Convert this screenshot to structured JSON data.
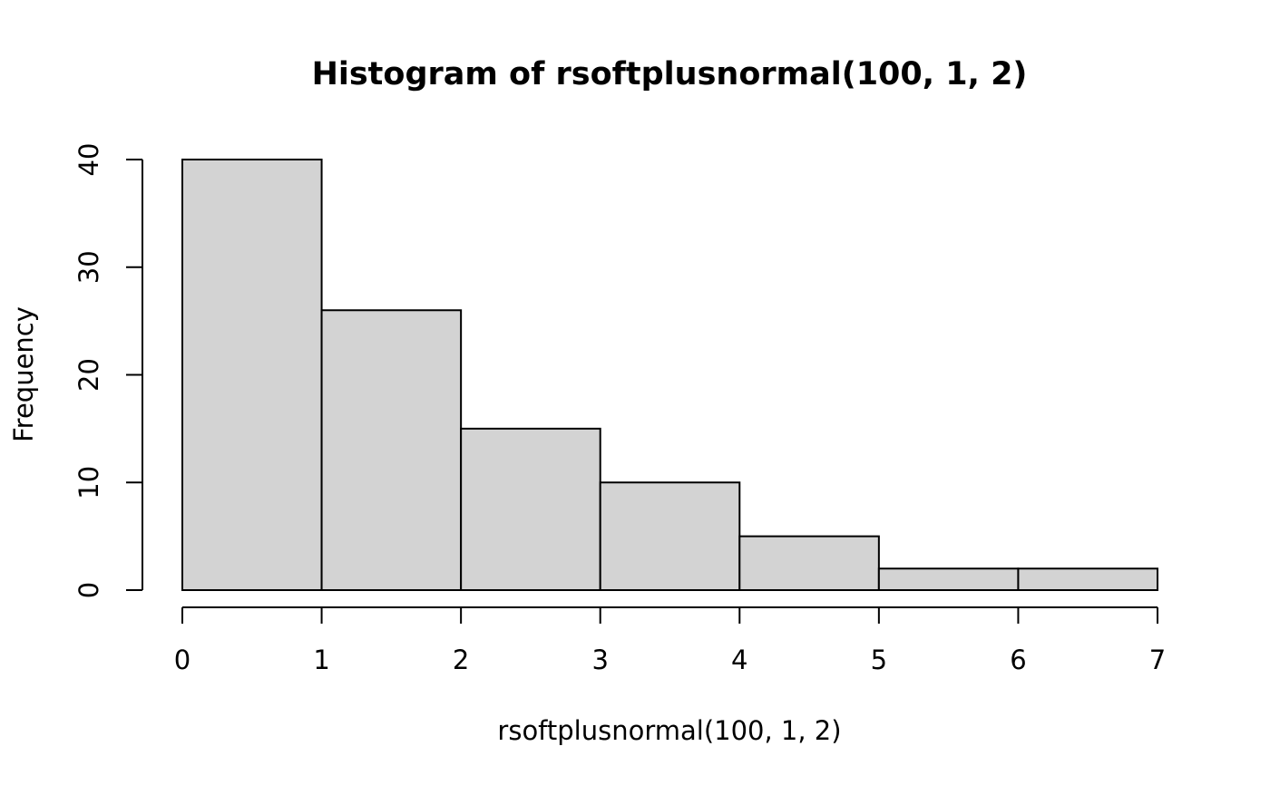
{
  "chart_data": {
    "type": "bar",
    "title": "Histogram of rsoftplusnormal(100, 1, 2)",
    "xlabel": "rsoftplusnormal(100, 1, 2)",
    "ylabel": "Frequency",
    "breaks": [
      0,
      1,
      2,
      3,
      4,
      5,
      6,
      7
    ],
    "values": [
      40,
      26,
      15,
      10,
      5,
      2,
      2
    ],
    "xlim": [
      0,
      7
    ],
    "ylim": [
      0,
      40
    ],
    "x_ticks": [
      "0",
      "1",
      "2",
      "3",
      "4",
      "5",
      "6",
      "7"
    ],
    "y_ticks": [
      "0",
      "10",
      "20",
      "30",
      "40"
    ],
    "bar_fill": "#d3d3d3",
    "bar_stroke": "#000000",
    "grid": false,
    "legend": "none"
  }
}
